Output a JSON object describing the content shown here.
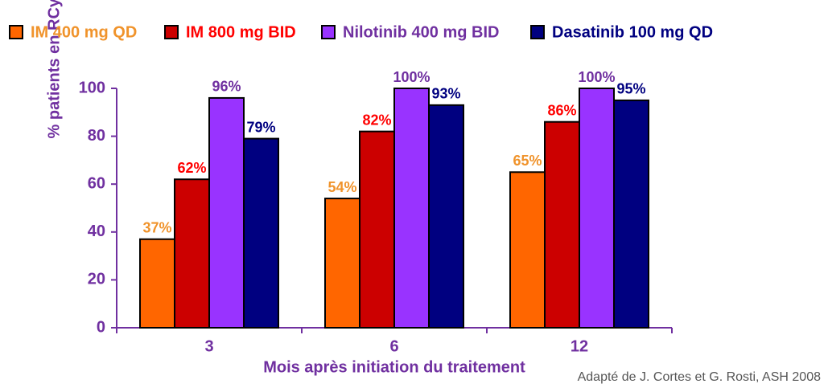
{
  "chart_data": {
    "type": "bar",
    "categories": [
      "3",
      "6",
      "12"
    ],
    "series": [
      {
        "name": "IM 400 mg QD",
        "color": "#ff6600",
        "label_color": "#f0932b",
        "values": [
          37,
          54,
          65
        ],
        "value_labels": [
          "37%",
          "54%",
          "65%"
        ]
      },
      {
        "name": "IM 800 mg BID",
        "color": "#cc0000",
        "label_color": "#ff0000",
        "values": [
          62,
          82,
          86
        ],
        "value_labels": [
          "62%",
          "82%",
          "86%"
        ]
      },
      {
        "name": "Nilotinib 400 mg BID",
        "color": "#9933ff",
        "label_color": "#7030a0",
        "values": [
          96,
          100,
          100
        ],
        "value_labels": [
          "96%",
          "100%",
          "100%"
        ]
      },
      {
        "name": "Dasatinib 100 mg QD",
        "color": "#000080",
        "label_color": "#000080",
        "values": [
          79,
          93,
          95
        ],
        "value_labels": [
          "79%",
          "93%",
          "95%"
        ]
      }
    ],
    "ylabel": "% patients en RCyC",
    "xlabel": "Mois après initiation du traitement",
    "source": "Adapté de J. Cortes et G. Rosti, ASH 2008",
    "ylim": [
      0,
      100
    ],
    "yticks": [
      0,
      20,
      40,
      60,
      80,
      100
    ],
    "axis_color": "#7030a0"
  }
}
